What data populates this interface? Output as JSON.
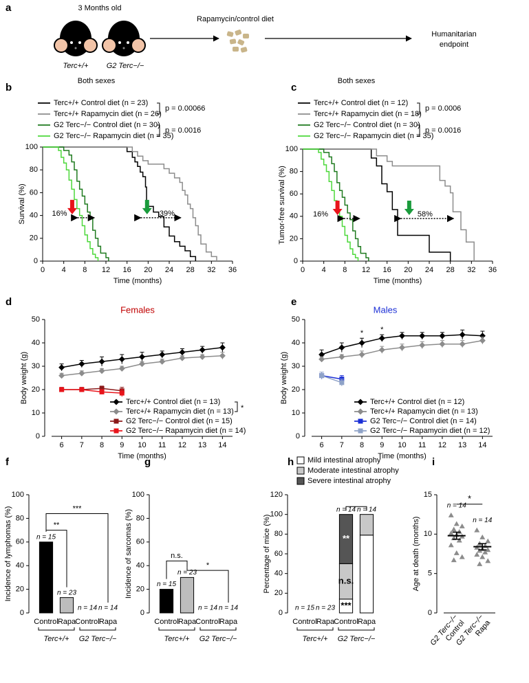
{
  "diagram": {
    "label": "a",
    "age": "3 Months old",
    "mice": [
      "Terc+/+",
      "G2 Terc−/−"
    ],
    "diet": "Rapamycin/control diet",
    "endpoint": [
      "Humanitarian",
      "endpoint"
    ]
  },
  "chart_data": [
    {
      "type": "step",
      "label": "b",
      "subtitle": "Both sexes",
      "xlabel": "Time (months)",
      "ylabel": "Survival (%)",
      "xlim": [
        0,
        36
      ],
      "xticks": [
        0,
        4,
        8,
        12,
        16,
        20,
        24,
        28,
        32,
        36
      ],
      "ylim": [
        0,
        100
      ],
      "yticks": [
        0,
        20,
        40,
        60,
        80,
        100
      ],
      "series": [
        {
          "name": "Terc+/+ Control diet (n = 23)",
          "color": "#000000",
          "x": [
            0,
            16,
            17,
            17.5,
            18,
            18.5,
            19,
            19.5,
            19.7,
            20,
            21,
            22,
            23,
            24,
            25,
            26,
            27,
            28,
            29
          ],
          "values": [
            100,
            96,
            91,
            87,
            83,
            78,
            74,
            65,
            52,
            48,
            43,
            39,
            30,
            22,
            17,
            13,
            9,
            4,
            0
          ]
        },
        {
          "name": "Terc+/+ Rapamycin diet (n = 26)",
          "color": "#8c8c8c",
          "x": [
            0,
            17,
            18,
            19,
            20,
            23,
            24,
            25,
            26,
            26.5,
            27,
            27.5,
            28,
            28.5,
            29,
            29.5,
            30,
            31,
            32,
            33
          ],
          "values": [
            100,
            96,
            92,
            88,
            85,
            81,
            77,
            73,
            69,
            62,
            58,
            50,
            46,
            38,
            31,
            23,
            15,
            8,
            4,
            0
          ]
        },
        {
          "name": "G2 Terc−/− Control diet (n = 30)",
          "color": "#1e7a1e",
          "x": [
            0,
            4,
            5,
            5.5,
            6,
            6.5,
            7,
            7.5,
            8,
            8.5,
            9,
            9.5,
            10,
            10.5,
            11,
            12,
            12.5
          ],
          "values": [
            100,
            97,
            93,
            87,
            80,
            70,
            63,
            57,
            50,
            43,
            37,
            27,
            20,
            13,
            7,
            3,
            0
          ]
        },
        {
          "name": "G2 Terc−/− Rapamycin diet (n = 35)",
          "color": "#4cd83a",
          "x": [
            0,
            3,
            3.5,
            4,
            4.5,
            5,
            5.5,
            6,
            6.5,
            7,
            7.5,
            8,
            8.5,
            9,
            9.5,
            10,
            10.5
          ],
          "values": [
            100,
            97,
            91,
            86,
            80,
            71,
            63,
            54,
            46,
            40,
            31,
            23,
            17,
            11,
            6,
            3,
            0
          ]
        }
      ],
      "pvalues": [
        "p = 0.00066",
        "p = 0.0016"
      ],
      "annotations": [
        "16%",
        "39%"
      ]
    },
    {
      "type": "step",
      "label": "c",
      "subtitle": "Both sexes",
      "xlabel": "Time (months)",
      "ylabel": "Tumor-free survival (%)",
      "xlim": [
        0,
        36
      ],
      "xticks": [
        0,
        4,
        8,
        12,
        16,
        20,
        24,
        28,
        32,
        36
      ],
      "ylim": [
        0,
        100
      ],
      "yticks": [
        0,
        20,
        40,
        60,
        80,
        100
      ],
      "series": [
        {
          "name": "Terc+/+ Control diet (n = 12)",
          "color": "#000000",
          "x": [
            0,
            13,
            14,
            15,
            16,
            17,
            18,
            24,
            28
          ],
          "values": [
            100,
            92,
            85,
            69,
            62,
            46,
            23,
            8,
            0
          ]
        },
        {
          "name": "Terc+/+ Rapamycin diet (n = 18)",
          "color": "#8c8c8c",
          "x": [
            0,
            14,
            16,
            17,
            26,
            27,
            28,
            28.5,
            30,
            31,
            32.5
          ],
          "values": [
            100,
            94,
            89,
            85,
            72,
            67,
            61,
            44,
            28,
            17,
            0
          ]
        },
        {
          "name": "G2 Terc−/− Control diet (n = 30)",
          "color": "#1e7a1e",
          "x": [
            0,
            4,
            5,
            5.5,
            6,
            6.5,
            7,
            7.5,
            8,
            8.5,
            9,
            9.5,
            10,
            10.5,
            11,
            12,
            12.5
          ],
          "values": [
            100,
            97,
            93,
            87,
            80,
            70,
            63,
            57,
            50,
            43,
            37,
            27,
            20,
            13,
            7,
            3,
            0
          ]
        },
        {
          "name": "G2 Terc−/− Rapamycin diet (n = 35)",
          "color": "#4cd83a",
          "x": [
            0,
            3,
            3.5,
            4,
            4.5,
            5,
            5.5,
            6,
            6.5,
            7,
            7.5,
            8,
            8.5,
            9,
            9.5,
            10,
            10.5
          ],
          "values": [
            100,
            97,
            91,
            86,
            80,
            71,
            63,
            54,
            46,
            40,
            31,
            23,
            17,
            11,
            6,
            3,
            0
          ]
        }
      ],
      "pvalues": [
        "p = 0.0006",
        "p = 0.0016"
      ],
      "annotations": [
        "16%",
        "58%"
      ]
    },
    {
      "type": "line",
      "label": "d",
      "title": "Females",
      "title_color": "#c00000",
      "xlabel": "Time (months)",
      "ylabel": "Body weight (g)",
      "x": [
        6,
        7,
        8,
        9,
        10,
        11,
        12,
        13,
        14
      ],
      "xlim": [
        5.5,
        14.5
      ],
      "xticks": [
        6,
        7,
        8,
        9,
        10,
        11,
        12,
        13,
        14
      ],
      "ylim": [
        0,
        50
      ],
      "yticks": [
        0,
        10,
        20,
        30,
        40,
        50
      ],
      "series": [
        {
          "name": "Terc+/+ Control diet (n = 13)",
          "color": "#000000",
          "marker": "diamond",
          "values": [
            29.5,
            31,
            32,
            33,
            34,
            35,
            36,
            37,
            38
          ],
          "errors": [
            1.5,
            1.5,
            2,
            2,
            2,
            1.5,
            1.5,
            1.5,
            2
          ]
        },
        {
          "name": "Terc+/+ Rapamycin diet (n = 13)",
          "color": "#8c8c8c",
          "marker": "diamond",
          "values": [
            26,
            27,
            28,
            29,
            31,
            32,
            33.5,
            34,
            34.5
          ],
          "errors": [
            1,
            1,
            1,
            1,
            1,
            1,
            1,
            1,
            1.5
          ]
        },
        {
          "name": "G2 Terc−/− Control diet (n = 15)",
          "color": "#8b1a1a",
          "marker": "square",
          "values": [
            20,
            20,
            20.5,
            19.5,
            null,
            null,
            null,
            null,
            null
          ],
          "errors": [
            1,
            1,
            1,
            1.5,
            null,
            null,
            null,
            null,
            null
          ]
        },
        {
          "name": "G2 Terc−/− Rapamycin diet (n = 14)",
          "color": "#e8141b",
          "marker": "square",
          "values": [
            20,
            20,
            19,
            18.5,
            null,
            null,
            null,
            null,
            null
          ],
          "errors": [
            0.8,
            0.8,
            1,
            1.5,
            null,
            null,
            null,
            null,
            null
          ]
        }
      ],
      "annotations": [
        "*"
      ]
    },
    {
      "type": "line",
      "label": "e",
      "title": "Males",
      "title_color": "#1b2fd6",
      "xlabel": "Time (months)",
      "ylabel": "Body weight (g)",
      "x": [
        6,
        7,
        8,
        9,
        10,
        11,
        12,
        13,
        14
      ],
      "xlim": [
        5.5,
        14.5
      ],
      "xticks": [
        6,
        7,
        8,
        9,
        10,
        11,
        12,
        13,
        14
      ],
      "ylim": [
        0,
        50
      ],
      "yticks": [
        0,
        10,
        20,
        30,
        40,
        50
      ],
      "series": [
        {
          "name": "Terc+/+ Control diet (n = 12)",
          "color": "#000000",
          "marker": "diamond",
          "values": [
            35,
            38,
            40,
            42,
            43,
            43,
            43,
            43.5,
            43
          ],
          "errors": [
            2,
            2,
            2,
            1.5,
            1.5,
            1.5,
            1.5,
            2,
            2
          ]
        },
        {
          "name": "Terc+/+ Rapamycin diet (n = 13)",
          "color": "#8c8c8c",
          "marker": "diamond",
          "values": [
            33,
            34,
            35,
            37,
            38,
            39,
            39.5,
            39.5,
            41
          ],
          "errors": [
            1,
            1,
            1.5,
            1.5,
            1.5,
            1.5,
            1.5,
            1.5,
            1.5
          ]
        },
        {
          "name": "G2 Terc−/− Control diet (n = 14)",
          "color": "#1b2fd6",
          "marker": "square",
          "values": [
            26,
            24.5,
            null,
            null,
            null,
            null,
            null,
            null,
            null
          ],
          "errors": [
            1.5,
            1.5,
            null,
            null,
            null,
            null,
            null,
            null,
            null
          ]
        },
        {
          "name": "G2 Terc−/− Rapamycin diet (n = 12)",
          "color": "#8fa3c8",
          "marker": "square",
          "values": [
            26,
            23,
            null,
            null,
            null,
            null,
            null,
            null,
            null
          ],
          "errors": [
            1.5,
            1.5,
            null,
            null,
            null,
            null,
            null,
            null,
            null
          ]
        }
      ],
      "annotations": [
        "*",
        "*"
      ]
    },
    {
      "type": "bar",
      "label": "f",
      "ylabel": "Incidence of lymphomas (%)",
      "ylim": [
        0,
        100
      ],
      "yticks": [
        0,
        20,
        40,
        60,
        80,
        100
      ],
      "categories": [
        "Control",
        "Rapa",
        "Control",
        "Rapa"
      ],
      "groups": [
        "Terc+/+",
        "G2 Terc−/−"
      ],
      "values": [
        60,
        13,
        0,
        0
      ],
      "colors": [
        "#000000",
        "#bdbdbd",
        "#000000",
        "#bdbdbd"
      ],
      "n_labels": [
        "n = 15",
        "n = 23",
        "n = 14",
        "n = 14"
      ],
      "annotations": [
        "**",
        "***"
      ]
    },
    {
      "type": "bar",
      "label": "g",
      "ylabel": "Incidence of sarcomas (%)",
      "ylim": [
        0,
        100
      ],
      "yticks": [
        0,
        20,
        40,
        60,
        80,
        100
      ],
      "categories": [
        "Control",
        "Rapa",
        "Control",
        "Rapa"
      ],
      "groups": [
        "Terc+/+",
        "G2 Terc−/−"
      ],
      "values": [
        20,
        30,
        0,
        0
      ],
      "colors": [
        "#000000",
        "#bdbdbd",
        "#000000",
        "#bdbdbd"
      ],
      "n_labels": [
        "n = 15",
        "n = 23",
        "n = 14",
        "n = 14"
      ],
      "annotations": [
        "n.s.",
        "*"
      ]
    },
    {
      "type": "stacked_bar",
      "label": "h",
      "ylabel": "Percentage of mice (%)",
      "ylim": [
        0,
        120
      ],
      "yticks": [
        0,
        20,
        40,
        60,
        80,
        100,
        120
      ],
      "categories": [
        "Control",
        "Rapa",
        "Control",
        "Rapa"
      ],
      "groups": [
        "Terc+/+",
        "G2 Terc−/−"
      ],
      "series": [
        {
          "name": "Mild intestinal atrophy",
          "color": "#ffffff",
          "values": [
            0,
            0,
            14,
            79
          ]
        },
        {
          "name": "Moderate intestinal atrophy",
          "color": "#c8c8c8",
          "values": [
            0,
            0,
            36,
            21
          ]
        },
        {
          "name": "Severe intestinal atrophy",
          "color": "#555555",
          "values": [
            0,
            0,
            50,
            0
          ]
        }
      ],
      "n_labels": [
        "n = 15",
        "n = 23",
        "n = 14",
        "n = 14"
      ],
      "annotations": [
        "**",
        "n.s.",
        "***"
      ]
    },
    {
      "type": "dot",
      "label": "i",
      "ylabel": "Age at death (months)",
      "ylim": [
        0,
        15
      ],
      "yticks": [
        0,
        5,
        10,
        15
      ],
      "group": "G2 Terc−/−",
      "categories": [
        "Control",
        "Rapa"
      ],
      "color": "#8c8c8c",
      "points": [
        [
          12.4,
          11.3,
          11,
          10.6,
          10.3,
          10.1,
          9.9,
          9.7,
          9.5,
          9.2,
          8.6,
          7.6,
          7.1,
          6.7
        ],
        [
          10.5,
          9.6,
          9.1,
          8.8,
          8.5,
          8.3,
          8.1,
          8,
          7.9,
          7.7,
          7.4,
          7.1,
          6.6,
          6.2
        ]
      ],
      "means": [
        9.8,
        8.4
      ],
      "sems": [
        0.45,
        0.4
      ],
      "n_labels": [
        "n = 14",
        "n = 14"
      ],
      "annotations": [
        "*"
      ]
    }
  ]
}
